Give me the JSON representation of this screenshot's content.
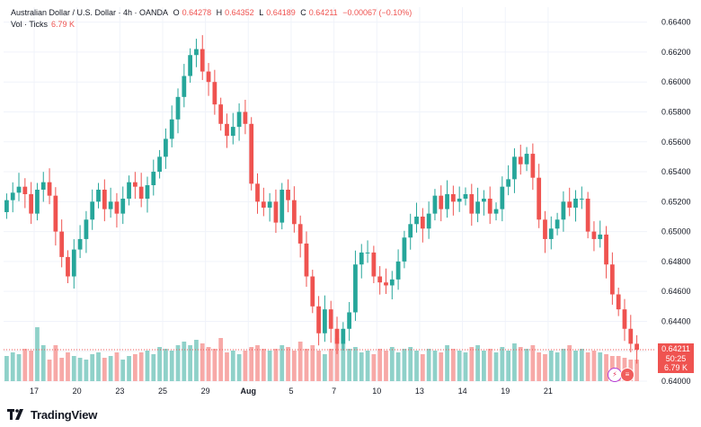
{
  "header": {
    "symbol": "Australian Dollar / U.S. Dollar · 4h · OANDA",
    "open_label": "O",
    "open": "0.64278",
    "high_label": "H",
    "high": "0.64352",
    "low_label": "L",
    "low": "0.64189",
    "close_label": "C",
    "close": "0.64211",
    "change": "−0.00067 (−0.10%)"
  },
  "volume": {
    "label": "Vol · Ticks",
    "value": "6.79 K"
  },
  "price_tags": {
    "last_price": "0.64211",
    "countdown": "50:25",
    "volume": "6.79 K"
  },
  "brand": {
    "name": "TradingView"
  },
  "colors": {
    "up": "#26a69a",
    "down": "#ef5350",
    "up_vol": "#8fd1c9",
    "down_vol": "#f7a9a7",
    "grid": "#f0f3fa"
  },
  "icons": {
    "logo": "tradingview-logo-icon",
    "alert_badge": "lightning-icon",
    "flag_badge": "us-flag-icon"
  },
  "chart_data": {
    "type": "candlestick",
    "title": "Australian Dollar / U.S. Dollar · 4h · OANDA",
    "y_ticks": [
      "0.66400",
      "0.66200",
      "0.66000",
      "0.65800",
      "0.65600",
      "0.65400",
      "0.65200",
      "0.65000",
      "0.64800",
      "0.64600",
      "0.64400",
      "0.64200",
      "0.64000"
    ],
    "ylim": [
      0.64,
      0.665
    ],
    "x_ticks": [
      "17",
      "20",
      "23",
      "25",
      "29",
      "Aug",
      "5",
      "7",
      "10",
      "13",
      "14",
      "19",
      "21"
    ],
    "x_tick_positions": [
      5,
      12,
      19,
      26,
      33,
      40,
      47,
      54,
      61,
      68,
      75,
      82,
      89
    ],
    "close_series": [
      0.6521,
      0.6526,
      0.653,
      0.6525,
      0.6512,
      0.6528,
      0.6533,
      0.6524,
      0.65,
      0.6483,
      0.647,
      0.6488,
      0.6495,
      0.6508,
      0.652,
      0.6528,
      0.6515,
      0.652,
      0.6512,
      0.6522,
      0.6533,
      0.653,
      0.6522,
      0.6531,
      0.654,
      0.655,
      0.6562,
      0.6575,
      0.659,
      0.6604,
      0.6618,
      0.6622,
      0.6607,
      0.66,
      0.6585,
      0.6572,
      0.6564,
      0.657,
      0.658,
      0.6572,
      0.6532,
      0.652,
      0.6516,
      0.652,
      0.6506,
      0.6528,
      0.6521,
      0.6505,
      0.6492,
      0.647,
      0.645,
      0.6432,
      0.6448,
      0.6435,
      0.6425,
      0.6435,
      0.6446,
      0.6478,
      0.6486,
      0.6486,
      0.647,
      0.6466,
      0.6464,
      0.6468,
      0.648,
      0.6496,
      0.6505,
      0.651,
      0.6502,
      0.6512,
      0.6524,
      0.6515,
      0.6525,
      0.652,
      0.6522,
      0.6525,
      0.6512,
      0.652,
      0.6522,
      0.6512,
      0.6515,
      0.653,
      0.6535,
      0.655,
      0.6545,
      0.6552,
      0.6536,
      0.6508,
      0.6495,
      0.6502,
      0.6508,
      0.652,
      0.6516,
      0.6522,
      0.6522,
      0.65,
      0.6495,
      0.6498,
      0.6478,
      0.6458,
      0.6448,
      0.6435,
      0.6425,
      0.6421
    ],
    "volume_series": [
      14,
      16,
      15,
      18,
      17,
      30,
      20,
      12,
      20,
      13,
      16,
      14,
      13,
      12,
      15,
      16,
      13,
      14,
      16,
      12,
      14,
      15,
      16,
      17,
      15,
      19,
      18,
      17,
      20,
      22,
      20,
      23,
      21,
      19,
      18,
      24,
      16,
      17,
      15,
      17,
      19,
      20,
      18,
      17,
      18,
      20,
      19,
      17,
      22,
      18,
      20,
      17,
      15,
      18,
      24,
      21,
      18,
      19,
      16,
      17,
      15,
      18,
      17,
      19,
      16,
      18,
      19,
      17,
      15,
      18,
      17,
      16,
      20,
      18,
      17,
      16,
      19,
      20,
      17,
      18,
      16,
      19,
      17,
      21,
      19,
      18,
      20,
      16,
      15,
      17,
      16,
      18,
      20,
      17,
      18,
      16,
      17,
      16,
      15,
      14,
      14,
      13,
      12,
      12
    ]
  }
}
